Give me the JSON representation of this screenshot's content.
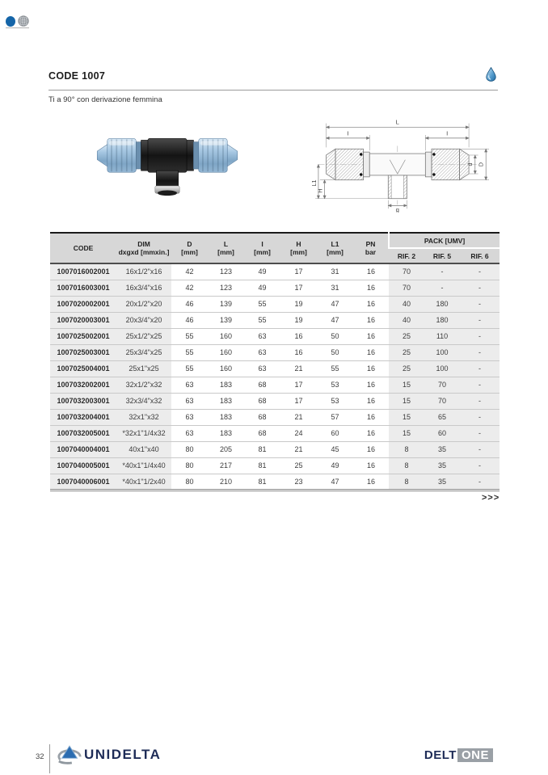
{
  "header": {
    "code_title": "CODE 1007",
    "subtitle": "Ti a 90° con derivazione femmina"
  },
  "icons": {
    "brand_dot": "blue-dot-icon",
    "globe": "globe-icon",
    "water_drop": "water-drop-icon"
  },
  "drawing": {
    "labels": {
      "l": "L",
      "i_left": "I",
      "i_right": "I",
      "l1": "L1",
      "h": "H",
      "d_inner": "d",
      "d_outer": "D",
      "g": "g"
    }
  },
  "table": {
    "columns": [
      {
        "line1": "CODE",
        "line2": ""
      },
      {
        "line1": "DIM",
        "line2": "dxgxd [mmxin.]"
      },
      {
        "line1": "D",
        "line2": "[mm]"
      },
      {
        "line1": "L",
        "line2": "[mm]"
      },
      {
        "line1": "I",
        "line2": "[mm]"
      },
      {
        "line1": "H",
        "line2": "[mm]"
      },
      {
        "line1": "L1",
        "line2": "[mm]"
      },
      {
        "line1": "PN",
        "line2": "bar"
      }
    ],
    "pack_header": "PACK [UMV]",
    "pack_subcols": [
      "RIF. 2",
      "RIF. 5",
      "RIF. 6"
    ],
    "rows": [
      {
        "code": "1007016002001",
        "dim": "16x1/2\"x16",
        "d": "42",
        "l": "123",
        "i": "49",
        "h": "17",
        "l1": "31",
        "pn": "16",
        "rif2": "70",
        "rif5": "-",
        "rif6": "-"
      },
      {
        "code": "1007016003001",
        "dim": "16x3/4\"x16",
        "d": "42",
        "l": "123",
        "i": "49",
        "h": "17",
        "l1": "31",
        "pn": "16",
        "rif2": "70",
        "rif5": "-",
        "rif6": "-"
      },
      {
        "code": "1007020002001",
        "dim": "20x1/2\"x20",
        "d": "46",
        "l": "139",
        "i": "55",
        "h": "19",
        "l1": "47",
        "pn": "16",
        "rif2": "40",
        "rif5": "180",
        "rif6": "-"
      },
      {
        "code": "1007020003001",
        "dim": "20x3/4\"x20",
        "d": "46",
        "l": "139",
        "i": "55",
        "h": "19",
        "l1": "47",
        "pn": "16",
        "rif2": "40",
        "rif5": "180",
        "rif6": "-"
      },
      {
        "code": "1007025002001",
        "dim": "25x1/2\"x25",
        "d": "55",
        "l": "160",
        "i": "63",
        "h": "16",
        "l1": "50",
        "pn": "16",
        "rif2": "25",
        "rif5": "110",
        "rif6": "-"
      },
      {
        "code": "1007025003001",
        "dim": "25x3/4\"x25",
        "d": "55",
        "l": "160",
        "i": "63",
        "h": "16",
        "l1": "50",
        "pn": "16",
        "rif2": "25",
        "rif5": "100",
        "rif6": "-"
      },
      {
        "code": "1007025004001",
        "dim": "25x1\"x25",
        "d": "55",
        "l": "160",
        "i": "63",
        "h": "21",
        "l1": "55",
        "pn": "16",
        "rif2": "25",
        "rif5": "100",
        "rif6": "-"
      },
      {
        "code": "1007032002001",
        "dim": "32x1/2\"x32",
        "d": "63",
        "l": "183",
        "i": "68",
        "h": "17",
        "l1": "53",
        "pn": "16",
        "rif2": "15",
        "rif5": "70",
        "rif6": "-"
      },
      {
        "code": "1007032003001",
        "dim": "32x3/4\"x32",
        "d": "63",
        "l": "183",
        "i": "68",
        "h": "17",
        "l1": "53",
        "pn": "16",
        "rif2": "15",
        "rif5": "70",
        "rif6": "-"
      },
      {
        "code": "1007032004001",
        "dim": "32x1\"x32",
        "d": "63",
        "l": "183",
        "i": "68",
        "h": "21",
        "l1": "57",
        "pn": "16",
        "rif2": "15",
        "rif5": "65",
        "rif6": "-"
      },
      {
        "code": "1007032005001",
        "dim": "*32x1\"1/4x32",
        "d": "63",
        "l": "183",
        "i": "68",
        "h": "24",
        "l1": "60",
        "pn": "16",
        "rif2": "15",
        "rif5": "60",
        "rif6": "-"
      },
      {
        "code": "1007040004001",
        "dim": "40x1\"x40",
        "d": "80",
        "l": "205",
        "i": "81",
        "h": "21",
        "l1": "45",
        "pn": "16",
        "rif2": "8",
        "rif5": "35",
        "rif6": "-"
      },
      {
        "code": "1007040005001",
        "dim": "*40x1\"1/4x40",
        "d": "80",
        "l": "217",
        "i": "81",
        "h": "25",
        "l1": "49",
        "pn": "16",
        "rif2": "8",
        "rif5": "35",
        "rif6": "-"
      },
      {
        "code": "1007040006001",
        "dim": "*40x1\"1/2x40",
        "d": "80",
        "l": "210",
        "i": "81",
        "h": "23",
        "l1": "47",
        "pn": "16",
        "rif2": "8",
        "rif5": "35",
        "rif6": "-"
      }
    ],
    "more_indicator": ">>>"
  },
  "footer": {
    "page_number": "32",
    "brand": "UNIDELTA",
    "brand2_left": "DELT",
    "brand2_right": "ONE"
  },
  "colors": {
    "accent_blue": "#1565a8",
    "navy": "#1e2c57",
    "header_gray": "#d7d7d7",
    "row_gray": "#ececec",
    "logo_gray": "#9aa0a6"
  }
}
